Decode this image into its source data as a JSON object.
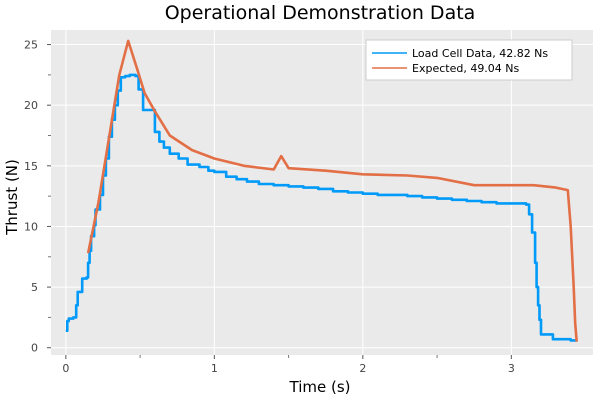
{
  "chart_data": {
    "type": "line",
    "title": "Operational Demonstration Data",
    "xlabel": "Time (s)",
    "ylabel": "Thrust (N)",
    "xlim": [
      -0.1,
      3.55
    ],
    "ylim": [
      -0.6,
      26.2
    ],
    "xticks": [
      0,
      1,
      2,
      3
    ],
    "xtick_labels": [
      "0",
      "1",
      "2",
      "3"
    ],
    "xminor": [
      0.5,
      1.5,
      2.5
    ],
    "yticks": [
      0,
      5,
      10,
      15,
      20,
      25
    ],
    "ytick_labels": [
      "0",
      "5",
      "10",
      "15",
      "20",
      "25"
    ],
    "yminor": [
      2.5,
      7.5,
      12.5,
      17.5,
      22.5
    ],
    "grid": true,
    "legend_position": "top-right",
    "background": "#eaeaea",
    "series": [
      {
        "name": "Load Cell Data, 42.82 Ns",
        "color": "#009af9",
        "step": true,
        "points": [
          [
            0.0,
            1.4
          ],
          [
            0.01,
            2.2
          ],
          [
            0.02,
            2.4
          ],
          [
            0.05,
            2.5
          ],
          [
            0.07,
            3.5
          ],
          [
            0.08,
            4.6
          ],
          [
            0.11,
            5.7
          ],
          [
            0.14,
            5.8
          ],
          [
            0.15,
            7.0
          ],
          [
            0.16,
            8.0
          ],
          [
            0.17,
            9.2
          ],
          [
            0.19,
            10.1
          ],
          [
            0.2,
            11.4
          ],
          [
            0.23,
            12.6
          ],
          [
            0.25,
            14.2
          ],
          [
            0.27,
            15.6
          ],
          [
            0.29,
            17.4
          ],
          [
            0.31,
            18.8
          ],
          [
            0.33,
            20.0
          ],
          [
            0.35,
            21.2
          ],
          [
            0.37,
            22.3
          ],
          [
            0.4,
            22.4
          ],
          [
            0.43,
            22.5
          ],
          [
            0.47,
            22.4
          ],
          [
            0.49,
            21.3
          ],
          [
            0.52,
            19.6
          ],
          [
            0.58,
            19.6
          ],
          [
            0.6,
            17.8
          ],
          [
            0.63,
            17.0
          ],
          [
            0.66,
            16.5
          ],
          [
            0.7,
            16.0
          ],
          [
            0.76,
            15.6
          ],
          [
            0.82,
            15.1
          ],
          [
            0.9,
            14.9
          ],
          [
            0.96,
            14.6
          ],
          [
            1.0,
            14.5
          ],
          [
            1.08,
            14.1
          ],
          [
            1.15,
            13.9
          ],
          [
            1.22,
            13.7
          ],
          [
            1.3,
            13.5
          ],
          [
            1.4,
            13.4
          ],
          [
            1.5,
            13.3
          ],
          [
            1.6,
            13.2
          ],
          [
            1.7,
            13.1
          ],
          [
            1.8,
            12.9
          ],
          [
            1.9,
            12.8
          ],
          [
            2.0,
            12.7
          ],
          [
            2.1,
            12.6
          ],
          [
            2.2,
            12.6
          ],
          [
            2.3,
            12.5
          ],
          [
            2.4,
            12.4
          ],
          [
            2.5,
            12.3
          ],
          [
            2.6,
            12.2
          ],
          [
            2.7,
            12.1
          ],
          [
            2.8,
            12.0
          ],
          [
            2.9,
            11.9
          ],
          [
            3.0,
            11.9
          ],
          [
            3.05,
            11.9
          ],
          [
            3.1,
            11.8
          ],
          [
            3.12,
            11.0
          ],
          [
            3.14,
            9.5
          ],
          [
            3.16,
            7.0
          ],
          [
            3.17,
            5.0
          ],
          [
            3.18,
            3.5
          ],
          [
            3.19,
            2.3
          ],
          [
            3.2,
            1.1
          ],
          [
            3.28,
            0.7
          ],
          [
            3.4,
            0.6
          ],
          [
            3.44,
            0.6
          ]
        ]
      },
      {
        "name": "Expected, 49.04 Ns",
        "color": "#e26f46",
        "step": false,
        "points": [
          [
            0.15,
            7.8
          ],
          [
            0.22,
            12.0
          ],
          [
            0.3,
            18.0
          ],
          [
            0.36,
            22.5
          ],
          [
            0.42,
            25.3
          ],
          [
            0.48,
            23.0
          ],
          [
            0.53,
            21.0
          ],
          [
            0.6,
            19.5
          ],
          [
            0.7,
            17.5
          ],
          [
            0.85,
            16.3
          ],
          [
            1.0,
            15.6
          ],
          [
            1.2,
            15.0
          ],
          [
            1.4,
            14.7
          ],
          [
            1.45,
            15.8
          ],
          [
            1.5,
            14.8
          ],
          [
            1.75,
            14.6
          ],
          [
            2.0,
            14.3
          ],
          [
            2.3,
            14.2
          ],
          [
            2.5,
            14.0
          ],
          [
            2.75,
            13.4
          ],
          [
            3.0,
            13.4
          ],
          [
            3.15,
            13.4
          ],
          [
            3.3,
            13.2
          ],
          [
            3.38,
            13.0
          ],
          [
            3.4,
            10.0
          ],
          [
            3.42,
            5.0
          ],
          [
            3.43,
            2.0
          ],
          [
            3.44,
            0.5
          ]
        ]
      }
    ]
  }
}
